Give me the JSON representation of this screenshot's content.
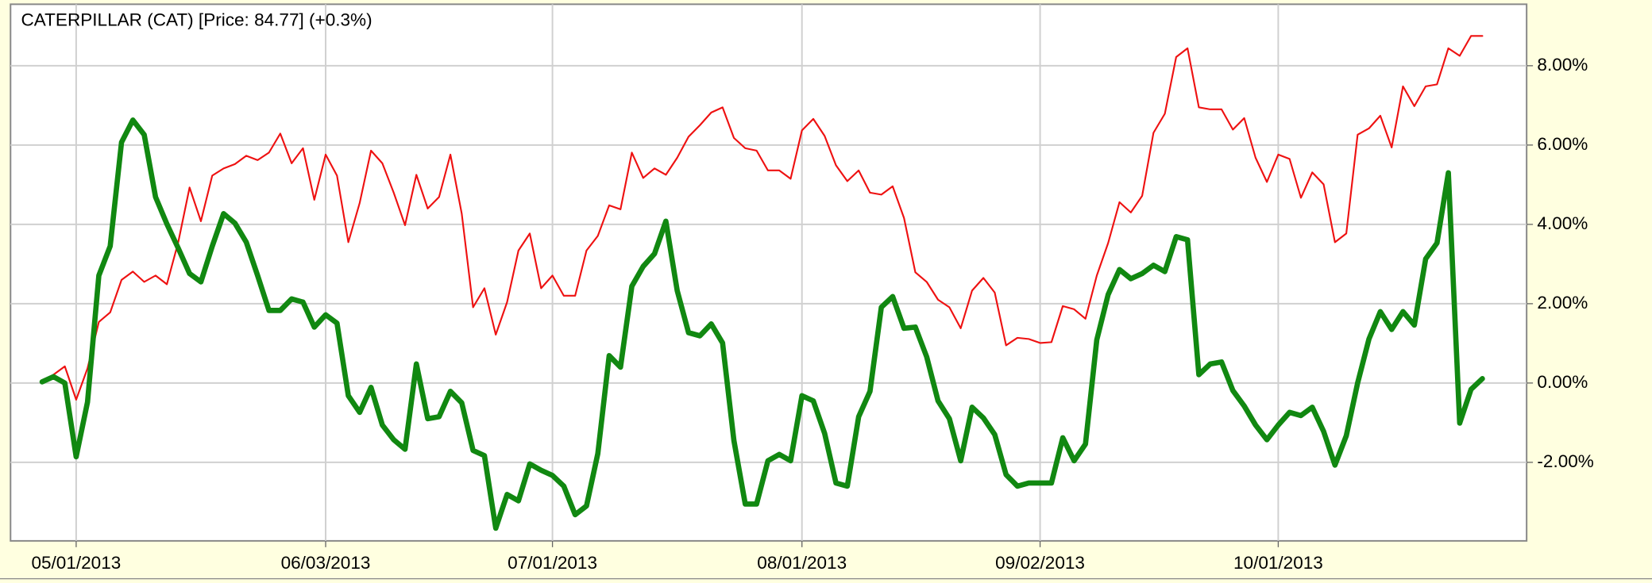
{
  "chart_data": {
    "type": "line",
    "title": "CATERPILLAR (CAT) [Price: 84.77] (+0.3%)",
    "categories": [
      null,
      null,
      null,
      "05/01/2013",
      null,
      null,
      null,
      null,
      null,
      null,
      null,
      null,
      null,
      null,
      null,
      null,
      null,
      null,
      null,
      null,
      null,
      null,
      null,
      null,
      null,
      "06/03/2013",
      null,
      null,
      null,
      null,
      null,
      null,
      null,
      null,
      null,
      null,
      null,
      null,
      null,
      null,
      null,
      null,
      null,
      null,
      null,
      "07/01/2013",
      null,
      null,
      null,
      null,
      null,
      null,
      null,
      null,
      null,
      null,
      null,
      null,
      null,
      null,
      null,
      null,
      null,
      null,
      null,
      null,
      null,
      "08/01/2013",
      null,
      null,
      null,
      null,
      null,
      null,
      null,
      null,
      null,
      null,
      null,
      null,
      null,
      null,
      null,
      null,
      null,
      null,
      null,
      null,
      "09/02/2013",
      null,
      null,
      null,
      null,
      null,
      null,
      null,
      null,
      null,
      null,
      null,
      null,
      null,
      null,
      null,
      null,
      null,
      null,
      null,
      null,
      "10/01/2013",
      null,
      null,
      null,
      null,
      null,
      null,
      null,
      null,
      null,
      null,
      null,
      null,
      null,
      null,
      null,
      null,
      null,
      null
    ],
    "series": [
      {
        "color": "#ee1111",
        "values": [
          0,
          0.21,
          0.42,
          -0.42,
          0.37,
          1.54,
          1.78,
          2.6,
          2.81,
          2.55,
          2.71,
          2.49,
          3.55,
          4.93,
          4.08,
          5.23,
          5.41,
          5.52,
          5.73,
          5.62,
          5.81,
          6.29,
          5.54,
          5.92,
          4.62,
          5.76,
          5.23,
          3.55,
          4.54,
          5.86,
          5.54,
          4.8,
          3.98,
          5.25,
          4.4,
          4.69,
          5.76,
          4.27,
          1.91,
          2.39,
          1.22,
          2.04,
          3.34,
          3.77,
          2.39,
          2.71,
          2.2,
          2.2,
          3.34,
          3.71,
          4.48,
          4.38,
          5.81,
          5.17,
          5.41,
          5.25,
          5.68,
          6.21,
          6.5,
          6.82,
          6.95,
          6.18,
          5.92,
          5.86,
          5.36,
          5.36,
          5.15,
          6.37,
          6.66,
          6.23,
          5.49,
          5.09,
          5.36,
          4.8,
          4.75,
          4.96,
          4.16,
          2.79,
          2.55,
          2.1,
          1.91,
          1.38,
          2.33,
          2.65,
          2.28,
          0.95,
          1.14,
          1.11,
          1.01,
          1.03,
          1.94,
          1.86,
          1.62,
          2.71,
          3.53,
          4.56,
          4.3,
          4.72,
          6.31,
          6.79,
          8.22,
          8.44,
          6.95,
          6.9,
          6.9,
          6.39,
          6.68,
          5.68,
          5.07,
          5.76,
          5.65,
          4.67,
          5.31,
          5.01,
          3.55,
          3.77,
          6.26,
          6.42,
          6.74,
          5.94,
          7.48,
          6.98,
          7.48,
          7.53,
          8.44,
          8.25,
          8.75,
          8.75
        ]
      },
      {
        "color": "#118811",
        "values": [
          0.03,
          0.16,
          0,
          -1.86,
          -0.48,
          2.71,
          3.45,
          6.07,
          6.63,
          6.26,
          4.69,
          4.01,
          3.4,
          2.76,
          2.55,
          3.45,
          4.27,
          4.03,
          3.55,
          2.71,
          1.83,
          1.83,
          2.12,
          2.04,
          1.41,
          1.72,
          1.51,
          -0.32,
          -0.74,
          -0.11,
          -1.06,
          -1.43,
          -1.67,
          0.48,
          -0.9,
          -0.85,
          -0.21,
          -0.5,
          -1.7,
          -1.83,
          -3.66,
          -2.81,
          -2.97,
          -2.04,
          -2.2,
          -2.33,
          -2.6,
          -3.32,
          -3.1,
          -1.78,
          0.69,
          0.4,
          2.44,
          2.94,
          3.26,
          4.08,
          2.33,
          1.27,
          1.19,
          1.49,
          1.01,
          -1.45,
          -3.05,
          -3.05,
          -1.96,
          -1.8,
          -1.96,
          -0.32,
          -0.45,
          -1.27,
          -2.52,
          -2.6,
          -0.85,
          -0.21,
          1.91,
          2.18,
          1.38,
          1.41,
          0.66,
          -0.45,
          -0.9,
          -1.96,
          -0.61,
          -0.88,
          -1.3,
          -2.31,
          -2.6,
          -2.52,
          -2.52,
          -2.52,
          -1.38,
          -1.96,
          -1.54,
          1.09,
          2.23,
          2.86,
          2.63,
          2.76,
          2.97,
          2.81,
          3.69,
          3.61,
          0.21,
          0.48,
          0.53,
          -0.19,
          -0.58,
          -1.06,
          -1.43,
          -1.06,
          -0.74,
          -0.82,
          -0.61,
          -1.22,
          -2.07,
          -1.33,
          0,
          1.11,
          1.8,
          1.35,
          1.8,
          1.46,
          3.13,
          3.53,
          5.3,
          -1.01,
          -0.16,
          0.11
        ]
      }
    ],
    "ylim": [
      -3.98,
      9.55
    ],
    "yticks": [
      {
        "value": -2,
        "label": "-2.00%"
      },
      {
        "value": 0,
        "label": "0.00%"
      },
      {
        "value": 2,
        "label": "2.00%"
      },
      {
        "value": 4,
        "label": "4.00%"
      },
      {
        "value": 6,
        "label": "6.00%"
      },
      {
        "value": 8,
        "label": "8.00%"
      }
    ],
    "grid": true
  }
}
